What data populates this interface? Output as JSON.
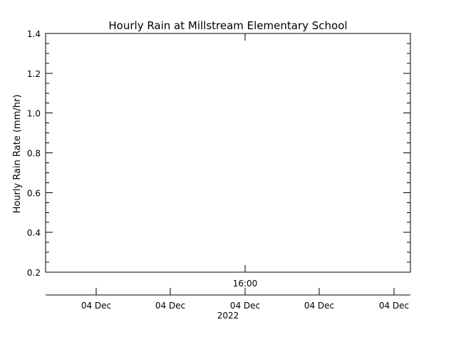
{
  "chart_data": {
    "type": "line",
    "title": "Hourly Rain at Millstream Elementary School",
    "ylabel": "Hourly Rain Rate (mm/hr)",
    "xlabel": "",
    "ylim": [
      0.2,
      1.4
    ],
    "y_ticks": [
      "0.2",
      "0.4",
      "0.6",
      "0.8",
      "1.0",
      "1.2",
      "1.4"
    ],
    "time_axis_tick": "16:00",
    "date_axis_ticks": [
      "04 Dec",
      "04 Dec",
      "04 Dec",
      "04 Dec",
      "04 Dec"
    ],
    "year_label": "2022",
    "grid": false,
    "series": []
  }
}
